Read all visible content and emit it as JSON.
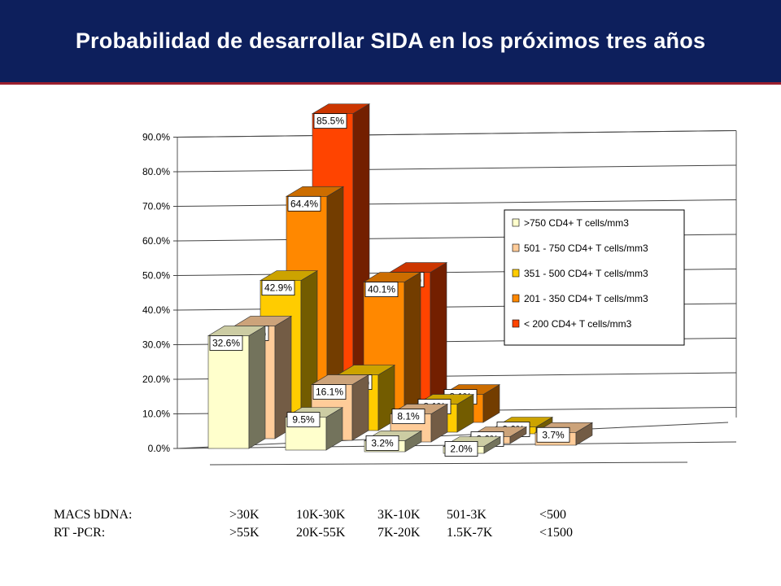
{
  "page": {
    "title": "Probabilidad de desarrollar SIDA en los próximos tres años",
    "title_bg": "#0d1f5c",
    "title_border": "#9b1f2e"
  },
  "chart_data": {
    "type": "bar",
    "style": "3d-clustered-bar",
    "categories": [
      ">30K / >55K",
      "10K-30K / 20K-55K",
      "3K-10K / 7K-20K",
      "501-3K / 1.5K-7K",
      "<500 / <1500"
    ],
    "y_ticks": [
      "0.0%",
      "10.0%",
      "20.0%",
      "30.0%",
      "40.0%",
      "50.0%",
      "60.0%",
      "70.0%",
      "80.0%",
      "90.0%"
    ],
    "ylim": [
      0,
      90
    ],
    "grid": true,
    "legend_position": "right",
    "series": [
      {
        "name": ">750 CD4+ T cells/mm3",
        "color": "#ffffcc",
        "values": [
          32.6,
          9.5,
          3.2,
          2.0,
          null
        ],
        "labels": [
          "32.6%",
          "9.5%",
          "3.2%",
          "2.0%",
          ""
        ]
      },
      {
        "name": "501 - 750 CD4+ T cells/mm3",
        "color": "#ffcc99",
        "values": [
          32.6,
          16.1,
          8.1,
          2.0,
          3.7
        ],
        "labels": [
          "32.6%",
          "16.1%",
          "8.1%",
          "2.0%",
          "3.7%"
        ]
      },
      {
        "name": "351 - 500 CD4+ T cells/mm3",
        "color": "#ffcc00",
        "values": [
          42.9,
          16.1,
          8.1,
          2.0,
          null
        ],
        "labels": [
          "42.9%",
          "16.1%",
          "8.1%",
          "2.0%",
          ""
        ]
      },
      {
        "name": "201 - 350 CD4+ T cells/mm3",
        "color": "#ff8800",
        "values": [
          64.4,
          40.1,
          8.1,
          null,
          null
        ],
        "labels": [
          "64.4%",
          "40.1%",
          "8.1%",
          "",
          ""
        ]
      },
      {
        "name": "< 200 CD4+ T cells/mm3",
        "color": "#ff4400",
        "values": [
          85.5,
          40.1,
          null,
          null,
          null
        ],
        "labels": [
          "85.5%",
          "40.1%",
          "",
          "",
          ""
        ]
      }
    ]
  },
  "bottom_table": {
    "rows": [
      {
        "label": "MACS bDNA:",
        "values": [
          ">30K",
          "10K-30K",
          "3K-10K",
          "501-3K",
          "<500"
        ]
      },
      {
        "label": "RT -PCR:",
        "values": [
          ">55K",
          "20K-55K",
          "7K-20K",
          "1.5K-7K",
          "<1500"
        ]
      }
    ]
  }
}
